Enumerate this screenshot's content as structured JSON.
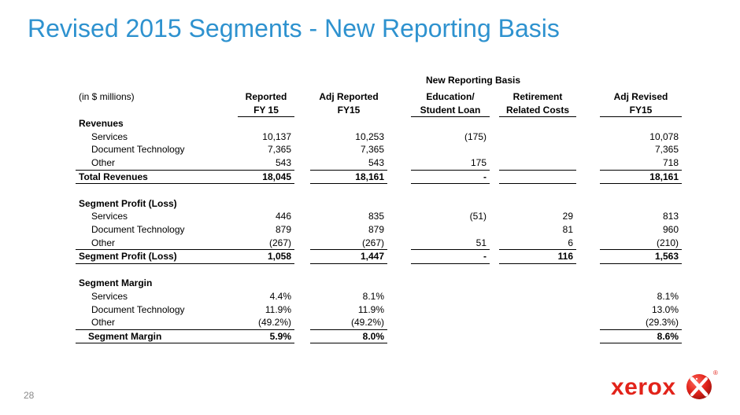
{
  "slide": {
    "title": "Revised 2015 Segments - New Reporting Basis",
    "page_number": "28",
    "logo_text": "xerox",
    "logo_reg": "®"
  },
  "table": {
    "group_header": "New Reporting Basis",
    "unit_label": "(in $ millions)",
    "columns": [
      {
        "line1": "Reported",
        "line2": "FY 15"
      },
      {
        "line1": "Adj Reported",
        "line2": "FY15"
      },
      {
        "line1": "Education/",
        "line2": "Student Loan"
      },
      {
        "line1": "Retirement",
        "line2": "Related Costs"
      },
      {
        "line1": "Adj Revised",
        "line2": "FY15"
      }
    ],
    "sections": [
      {
        "heading": "Revenues",
        "rows": [
          {
            "label": "Services",
            "values": [
              "10,137",
              "10,253",
              "(175)",
              "",
              "10,078"
            ]
          },
          {
            "label": "Document Technology",
            "values": [
              "7,365",
              "7,365",
              "",
              "",
              "7,365"
            ]
          },
          {
            "label": "Other",
            "values": [
              "543",
              "543",
              "175",
              "",
              "718"
            ]
          }
        ],
        "total": {
          "label": "Total Revenues",
          "values": [
            "18,045",
            "18,161",
            "-",
            "",
            "18,161"
          ]
        }
      },
      {
        "heading": "Segment Profit (Loss)",
        "rows": [
          {
            "label": "Services",
            "values": [
              "446",
              "835",
              "(51)",
              "29",
              "813"
            ]
          },
          {
            "label": "Document Technology",
            "values": [
              "879",
              "879",
              "",
              "81",
              "960"
            ]
          },
          {
            "label": "Other",
            "values": [
              "(267)",
              "(267)",
              "51",
              "6",
              "(210)"
            ]
          }
        ],
        "total": {
          "label": "Segment Profit (Loss)",
          "values": [
            "1,058",
            "1,447",
            "-",
            "116",
            "1,563"
          ]
        }
      },
      {
        "heading": "Segment Margin",
        "rows": [
          {
            "label": "Services",
            "values": [
              "4.4%",
              "8.1%",
              "",
              "",
              "8.1%"
            ]
          },
          {
            "label": "Document Technology",
            "values": [
              "11.9%",
              "11.9%",
              "",
              "",
              "13.0%"
            ]
          },
          {
            "label": "Other",
            "values": [
              "(49.2%)",
              "(49.2%)",
              "",
              "",
              "(29.3%)"
            ]
          }
        ],
        "total": {
          "label": "Segment Margin",
          "values": [
            "5.9%",
            "8.0%",
            "",
            "",
            "8.6%"
          ]
        }
      }
    ]
  },
  "colors": {
    "title": "#2e92cf",
    "brand_red": "#e2231a",
    "page_number": "#8a8a8a"
  },
  "icons": {
    "logo_mark": "xerox-digital-x-sphere-icon"
  }
}
